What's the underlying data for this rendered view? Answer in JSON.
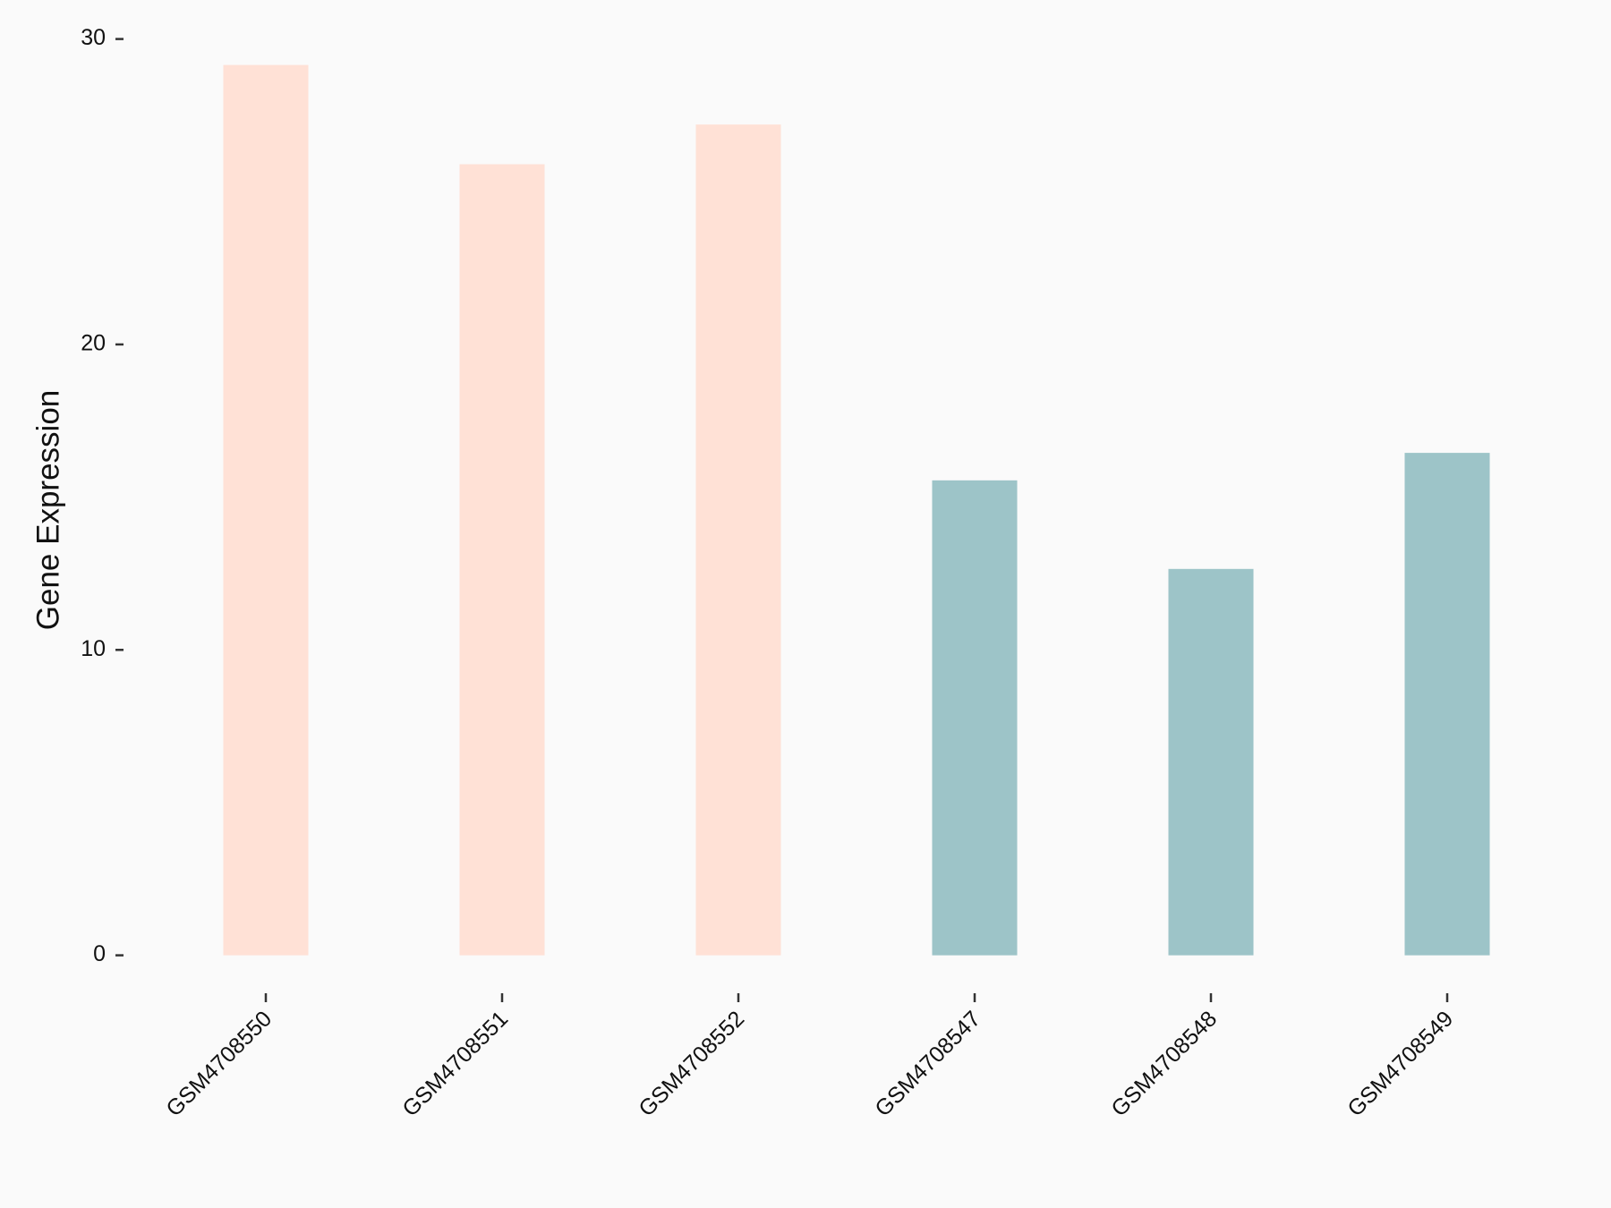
{
  "chart_data": {
    "type": "bar",
    "y_label": "Gene Expression",
    "categories": [
      "GSM4708550",
      "GSM4708551",
      "GSM4708552",
      "GSM4708547",
      "GSM4708548",
      "GSM4708549"
    ],
    "values": [
      29.15,
      25.9,
      27.2,
      15.55,
      12.65,
      16.45
    ],
    "colors": [
      "#FFE1D6",
      "#FFE1D6",
      "#FFE1D6",
      "#9DC4C8",
      "#9DC4C8",
      "#9DC4C8"
    ],
    "ylim": [
      0,
      30
    ],
    "yticks": [
      0,
      10,
      20,
      30
    ]
  }
}
